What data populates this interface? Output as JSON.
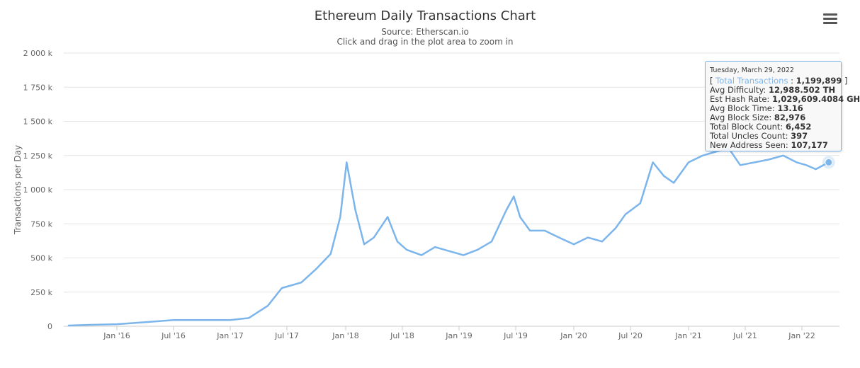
{
  "header": {
    "title": "Ethereum Daily Transactions Chart",
    "subtitle_source": "Source: Etherscan.io",
    "subtitle_hint": "Click and drag in the plot area to zoom in",
    "menu_icon": "hamburger-menu-icon"
  },
  "colors": {
    "series": "#7cb5ec",
    "grid": "#e6e6e6",
    "axis_text": "#666666"
  },
  "chart_data": {
    "type": "line",
    "title": "Ethereum Daily Transactions Chart",
    "subtitle": "Source: Etherscan.io",
    "xlabel": "",
    "ylabel": "Transactions per Day",
    "grid": true,
    "legend": "none",
    "x_range": [
      "2015-08-07",
      "2022-03-29"
    ],
    "ylim": [
      0,
      2000000
    ],
    "y_ticks": [
      0,
      250000,
      500000,
      750000,
      1000000,
      1250000,
      1500000,
      1750000,
      2000000
    ],
    "y_tick_labels": [
      "0",
      "250 k",
      "500 k",
      "750 k",
      "1 000 k",
      "1 250 k",
      "1 500 k",
      "1 750 k",
      "2 000 k"
    ],
    "x_ticks": [
      "2016-01-01",
      "2016-07-01",
      "2017-01-01",
      "2017-07-01",
      "2018-01-01",
      "2018-07-01",
      "2019-01-01",
      "2019-07-01",
      "2020-01-01",
      "2020-07-01",
      "2021-01-01",
      "2021-07-01",
      "2022-01-01"
    ],
    "x_tick_labels": [
      "Jan '16",
      "Jul '16",
      "Jan '17",
      "Jul '17",
      "Jan '18",
      "Jul '18",
      "Jan '19",
      "Jul '19",
      "Jan '20",
      "Jul '20",
      "Jan '21",
      "Jul '21",
      "Jan '22"
    ],
    "series": [
      {
        "name": "Total Transactions",
        "x": [
          "2015-08-07",
          "2015-10-01",
          "2016-01-01",
          "2016-04-01",
          "2016-07-01",
          "2016-10-01",
          "2017-01-01",
          "2017-03-01",
          "2017-05-01",
          "2017-06-15",
          "2017-07-01",
          "2017-08-15",
          "2017-10-01",
          "2017-11-15",
          "2017-12-15",
          "2018-01-04",
          "2018-02-01",
          "2018-03-01",
          "2018-04-01",
          "2018-05-15",
          "2018-06-15",
          "2018-07-15",
          "2018-09-01",
          "2018-10-15",
          "2018-12-01",
          "2019-01-15",
          "2019-03-01",
          "2019-04-15",
          "2019-06-01",
          "2019-06-25",
          "2019-07-15",
          "2019-08-15",
          "2019-10-01",
          "2019-11-15",
          "2020-01-01",
          "2020-02-15",
          "2020-04-01",
          "2020-05-15",
          "2020-06-15",
          "2020-08-01",
          "2020-09-10",
          "2020-10-15",
          "2020-11-15",
          "2021-01-01",
          "2021-02-15",
          "2021-04-01",
          "2021-05-10",
          "2021-06-15",
          "2021-08-01",
          "2021-09-15",
          "2021-11-01",
          "2021-12-15",
          "2022-01-15",
          "2022-02-15",
          "2022-03-29"
        ],
        "values": [
          5000,
          10000,
          15000,
          30000,
          45000,
          45000,
          45000,
          60000,
          150000,
          280000,
          290000,
          320000,
          420000,
          530000,
          800000,
          1200000,
          850000,
          600000,
          650000,
          800000,
          620000,
          560000,
          520000,
          580000,
          550000,
          520000,
          560000,
          620000,
          850000,
          950000,
          800000,
          700000,
          700000,
          650000,
          600000,
          650000,
          620000,
          720000,
          820000,
          900000,
          1200000,
          1100000,
          1050000,
          1200000,
          1250000,
          1280000,
          1300000,
          1180000,
          1200000,
          1220000,
          1250000,
          1200000,
          1180000,
          1150000,
          1199899
        ]
      }
    ]
  },
  "tooltip": {
    "date": "Tuesday, March 29, 2022",
    "series_name": "Total Transactions",
    "series_value": "1,199,899",
    "rows": [
      {
        "label": "Avg Difficulty:",
        "value": "12,988.502 TH"
      },
      {
        "label": "Est Hash Rate:",
        "value": "1,029,609.4084 GH"
      },
      {
        "label": "Avg Block Time:",
        "value": "13.16"
      },
      {
        "label": "Avg Block Size:",
        "value": "82,976"
      },
      {
        "label": "Total Block Count:",
        "value": "6,452"
      },
      {
        "label": "Total Uncles Count:",
        "value": "397"
      },
      {
        "label": "New Address Seen:",
        "value": "107,177"
      }
    ]
  }
}
